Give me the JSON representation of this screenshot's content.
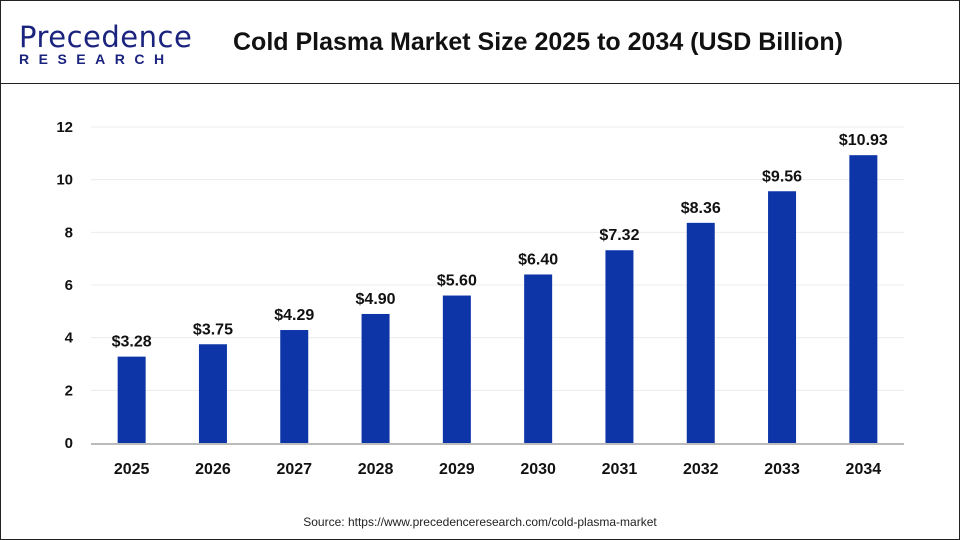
{
  "header": {
    "logo_text_top": "Precedence",
    "logo_text_bottom": "RESEARCH",
    "title": "Cold Plasma Market Size 2025 to 2034 (USD Billion)"
  },
  "source": "Source: https://www.precedenceresearch.com/cold-plasma-market",
  "chart_data": {
    "type": "bar",
    "title": "Cold Plasma Market Size 2025 to 2034 (USD Billion)",
    "categories": [
      "2025",
      "2026",
      "2027",
      "2028",
      "2029",
      "2030",
      "2031",
      "2032",
      "2033",
      "2034"
    ],
    "values": [
      3.28,
      3.75,
      4.29,
      4.9,
      5.6,
      6.4,
      7.32,
      8.36,
      9.56,
      10.93
    ],
    "data_labels": [
      "$3.28",
      "$3.75",
      "$4.29",
      "$4.90",
      "$5.60",
      "$6.40",
      "$7.32",
      "$8.36",
      "$9.56",
      "$10.93"
    ],
    "yticks": [
      0,
      2,
      4,
      6,
      8,
      10,
      12
    ],
    "ylim": [
      0,
      12
    ],
    "grid": true,
    "bar_color": "#0d35a8"
  }
}
